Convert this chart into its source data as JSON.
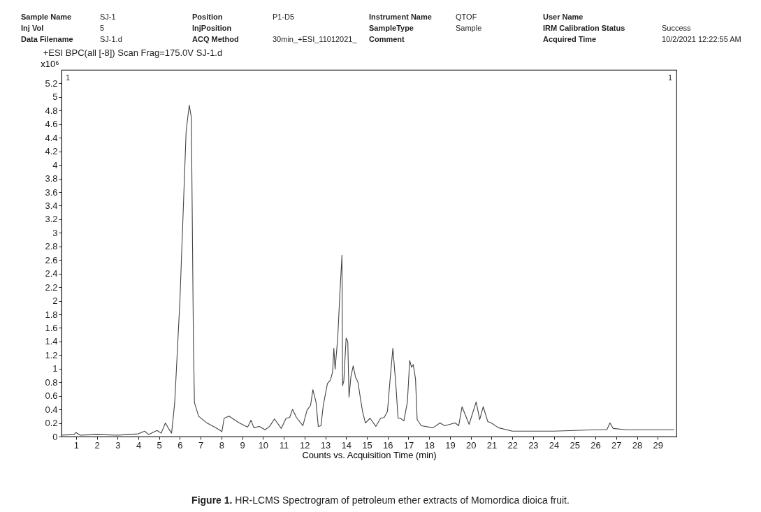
{
  "chart_data": {
    "type": "line",
    "title": "+ESI BPC(all [-8]) Scan Frag=175.0V SJ-1.d",
    "xlabel": "Counts vs. Acquisition Time (min)",
    "ylabel": "x10⁶",
    "annotations": [
      "Sample Name",
      "SJ-1",
      "Position",
      "P1-D5",
      "Instrument Name",
      "QTOF",
      "User Name",
      "Inj Vol",
      "5",
      "InjPosition",
      "SampleType",
      "Sample",
      "IRM Calibration Status",
      "Success",
      "Data Filename",
      "SJ-1.d",
      "ACQ Method",
      "30min_+ESI_11012021_",
      "Comment",
      "Acquired Time",
      "10/2/2021 12:22:55 AM",
      "1",
      "1",
      "Figure 1. HR-LCMS Spectrogram of petroleum ether extracts of Momordica dioica fruit."
    ],
    "xlim": [
      0.3,
      29.9
    ],
    "xticks": [
      1,
      2,
      3,
      4,
      5,
      6,
      7,
      8,
      9,
      10,
      11,
      12,
      13,
      14,
      15,
      16,
      17,
      18,
      19,
      20,
      21,
      22,
      23,
      24,
      25,
      26,
      27,
      28,
      29
    ],
    "ylim": [
      0,
      5.4
    ],
    "yticks": [
      0,
      0.2,
      0.4,
      0.6,
      0.8,
      1,
      1.2,
      1.4,
      1.6,
      1.8,
      2,
      2.2,
      2.4,
      2.6,
      2.8,
      3,
      3.2,
      3.4,
      3.6,
      3.8,
      4,
      4.2,
      4.4,
      4.6,
      4.8,
      5,
      5.2
    ],
    "grid": false,
    "marker": "none",
    "line_style": "solid",
    "series": [
      {
        "color": "#444444",
        "x": [
          0.3,
          0.9,
          1.0,
          1.2,
          2,
          3,
          3.5,
          4,
          4.3,
          4.5,
          4.9,
          5.1,
          5.3,
          5.45,
          5.6,
          5.75,
          6.0,
          6.3,
          6.45,
          6.55,
          6.65,
          6.7,
          6.9,
          7.3,
          7.9,
          8.02,
          8.13,
          8.36,
          8.86,
          9.26,
          9.42,
          9.56,
          9.82,
          10.1,
          10.32,
          10.55,
          10.88,
          11.11,
          11.28,
          11.42,
          11.61,
          11.92,
          12.12,
          12.29,
          12.4,
          12.55,
          12.66,
          12.79,
          12.9,
          13.1,
          13.24,
          13.35,
          13.41,
          13.47,
          13.6,
          13.69,
          13.8,
          13.83,
          13.89,
          14.0,
          14.08,
          14.14,
          14.23,
          14.34,
          14.45,
          14.57,
          14.68,
          14.79,
          14.93,
          15.15,
          15.43,
          15.66,
          15.83,
          15.99,
          16.1,
          16.25,
          16.39,
          16.5,
          16.61,
          16.78,
          16.95,
          17.06,
          17.15,
          17.23,
          17.34,
          17.42,
          17.62,
          18.18,
          18.52,
          18.74,
          19.25,
          19.42,
          19.58,
          19.92,
          20.26,
          20.43,
          20.6,
          20.82,
          20.99,
          21.33,
          22.0,
          24,
          26,
          26.55,
          26.7,
          26.85,
          27.5,
          29.8
        ],
        "values": [
          0.02,
          0.03,
          0.06,
          0.02,
          0.03,
          0.02,
          0.03,
          0.04,
          0.08,
          0.03,
          0.09,
          0.05,
          0.2,
          0.12,
          0.05,
          0.5,
          2.0,
          4.5,
          4.88,
          4.7,
          1.4,
          0.5,
          0.3,
          0.2,
          0.1,
          0.07,
          0.27,
          0.3,
          0.2,
          0.14,
          0.24,
          0.13,
          0.15,
          0.1,
          0.15,
          0.26,
          0.12,
          0.27,
          0.28,
          0.4,
          0.28,
          0.16,
          0.39,
          0.46,
          0.69,
          0.51,
          0.15,
          0.16,
          0.46,
          0.78,
          0.83,
          0.95,
          1.3,
          0.99,
          1.47,
          2.05,
          2.67,
          0.75,
          0.82,
          1.45,
          1.4,
          0.58,
          0.88,
          1.04,
          0.88,
          0.8,
          0.58,
          0.37,
          0.2,
          0.27,
          0.15,
          0.27,
          0.28,
          0.37,
          0.78,
          1.3,
          0.78,
          0.27,
          0.27,
          0.23,
          0.51,
          1.12,
          1.02,
          1.06,
          0.85,
          0.25,
          0.16,
          0.13,
          0.2,
          0.16,
          0.2,
          0.16,
          0.44,
          0.18,
          0.51,
          0.25,
          0.44,
          0.22,
          0.2,
          0.13,
          0.08,
          0.08,
          0.1,
          0.1,
          0.2,
          0.12,
          0.1,
          0.1
        ]
      }
    ]
  }
}
